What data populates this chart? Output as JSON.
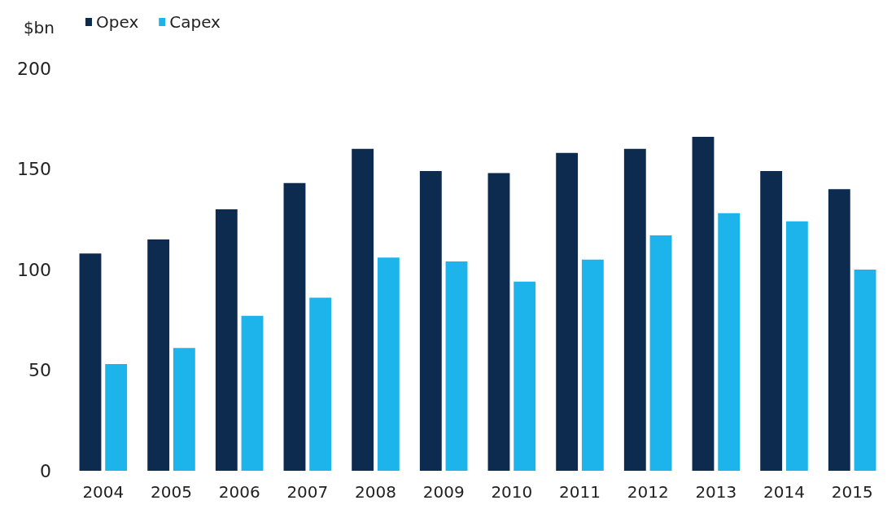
{
  "chart_data": {
    "type": "bar",
    "ylabel": "$bn",
    "categories": [
      "2004",
      "2005",
      "2006",
      "2007",
      "2008",
      "2009",
      "2010",
      "2011",
      "2012",
      "2013",
      "2014",
      "2015"
    ],
    "series": [
      {
        "name": "Opex",
        "color": "#0d2b4e",
        "values": [
          108,
          115,
          130,
          143,
          160,
          149,
          148,
          158,
          160,
          166,
          149,
          140
        ]
      },
      {
        "name": "Capex",
        "color": "#1cb4ea",
        "values": [
          53,
          61,
          77,
          86,
          106,
          104,
          94,
          105,
          117,
          128,
          124,
          100
        ]
      }
    ],
    "ylim": [
      0,
      200
    ],
    "yticks": [
      0,
      50,
      100,
      150,
      200
    ],
    "grid": false,
    "legend": "top left"
  }
}
